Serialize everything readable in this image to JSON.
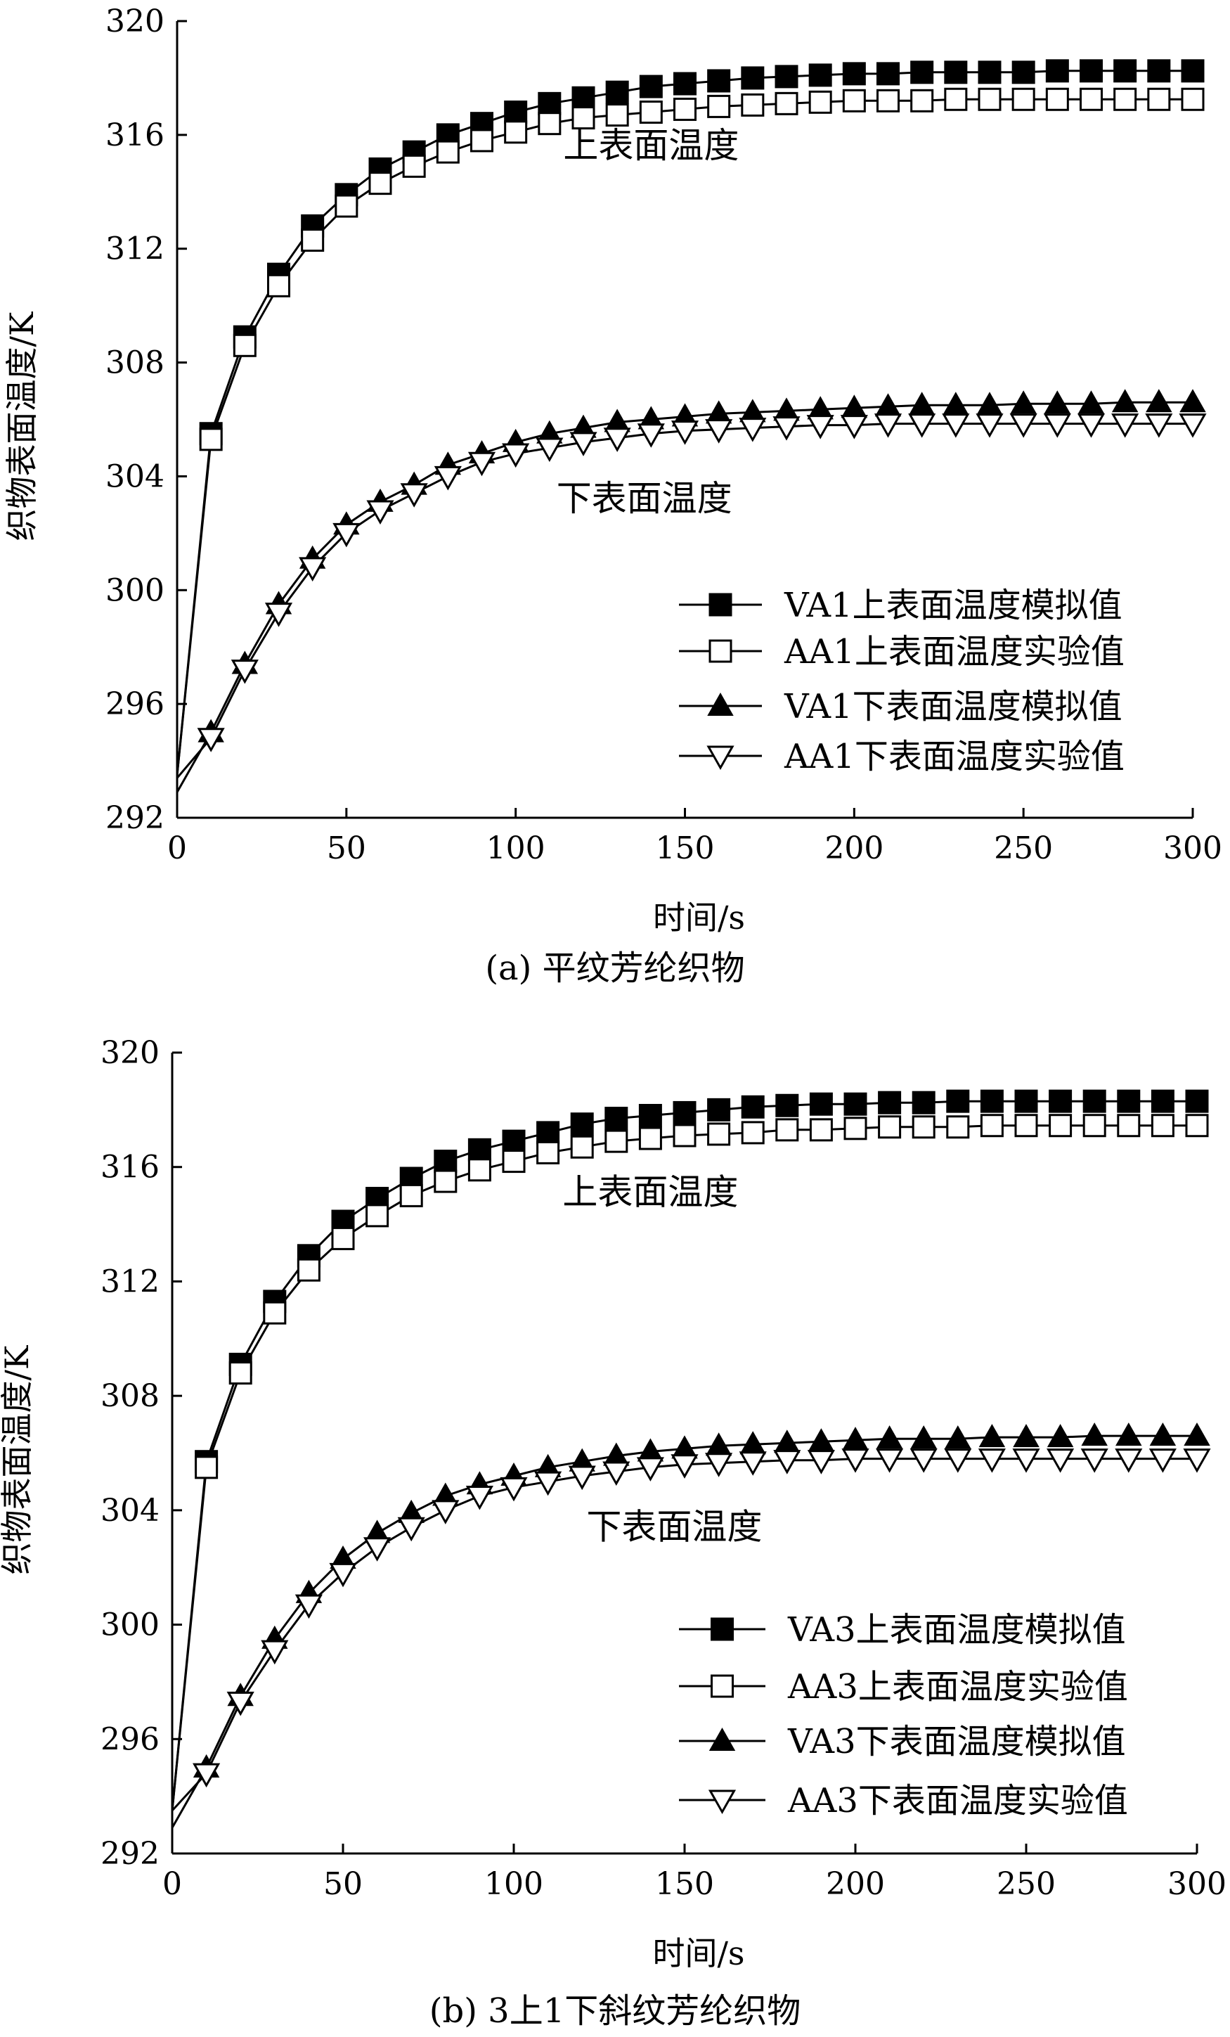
{
  "chart_data": [
    {
      "type": "line",
      "caption": "(a) 平纹芳纶织物",
      "xlabel": "时间/s",
      "ylabel": "织物表面温度/K",
      "xlim": [
        0,
        300
      ],
      "ylim": [
        292,
        320
      ],
      "xticks": [
        "0",
        "50",
        "100",
        "150",
        "200",
        "250",
        "300"
      ],
      "yticks": [
        "292",
        "296",
        "300",
        "304",
        "308",
        "312",
        "316",
        "320"
      ],
      "annotations": [
        {
          "text": "上表面温度",
          "x": 140,
          "y": 315.2
        },
        {
          "text": "下表面温度",
          "x": 138,
          "y": 302.8
        }
      ],
      "legend_position": "bottom-right",
      "series": [
        {
          "name": "VA1上表面温度模拟值",
          "marker": "square-filled",
          "x": [
            0,
            10,
            20,
            30,
            40,
            50,
            60,
            70,
            80,
            90,
            100,
            110,
            120,
            130,
            140,
            150,
            160,
            170,
            180,
            190,
            200,
            210,
            220,
            230,
            240,
            250,
            260,
            270,
            280,
            290,
            300
          ],
          "y": [
            293.5,
            305.5,
            308.9,
            311.1,
            312.8,
            313.9,
            314.8,
            315.4,
            316.0,
            316.4,
            316.8,
            317.1,
            317.3,
            317.5,
            317.7,
            317.8,
            317.9,
            318.0,
            318.05,
            318.1,
            318.15,
            318.15,
            318.2,
            318.2,
            318.2,
            318.2,
            318.25,
            318.25,
            318.25,
            318.25,
            318.25
          ]
        },
        {
          "name": "AA1上表面温度实验值",
          "marker": "square-open",
          "x": [
            0,
            10,
            20,
            30,
            40,
            50,
            60,
            70,
            80,
            90,
            100,
            110,
            120,
            130,
            140,
            150,
            160,
            170,
            180,
            190,
            200,
            210,
            220,
            230,
            240,
            250,
            260,
            270,
            280,
            290,
            300
          ],
          "y": [
            293.5,
            305.3,
            308.6,
            310.7,
            312.3,
            313.5,
            314.3,
            314.9,
            315.4,
            315.8,
            316.1,
            316.4,
            316.6,
            316.7,
            316.8,
            316.9,
            317.0,
            317.05,
            317.1,
            317.15,
            317.2,
            317.2,
            317.2,
            317.25,
            317.25,
            317.25,
            317.25,
            317.25,
            317.25,
            317.25,
            317.25
          ]
        },
        {
          "name": "VA1下表面温度模拟值",
          "marker": "triangle-up-filled",
          "x": [
            0,
            10,
            20,
            30,
            40,
            50,
            60,
            70,
            80,
            90,
            100,
            110,
            120,
            130,
            140,
            150,
            160,
            170,
            180,
            190,
            200,
            210,
            220,
            230,
            240,
            250,
            260,
            270,
            280,
            290,
            300
          ],
          "y": [
            292.9,
            295.0,
            297.4,
            299.5,
            301.1,
            302.3,
            303.1,
            303.7,
            304.4,
            304.8,
            305.2,
            305.5,
            305.7,
            305.9,
            306.0,
            306.1,
            306.2,
            306.25,
            306.3,
            306.35,
            306.4,
            306.45,
            306.5,
            306.5,
            306.5,
            306.55,
            306.55,
            306.55,
            306.6,
            306.6,
            306.6
          ]
        },
        {
          "name": "AA1下表面温度实验值",
          "marker": "triangle-down-open",
          "x": [
            0,
            10,
            20,
            30,
            40,
            50,
            60,
            70,
            80,
            90,
            100,
            110,
            120,
            130,
            140,
            150,
            160,
            170,
            180,
            190,
            200,
            210,
            220,
            230,
            240,
            250,
            260,
            270,
            280,
            290,
            300
          ],
          "y": [
            293.4,
            294.8,
            297.2,
            299.2,
            300.8,
            302.0,
            302.8,
            303.4,
            304.0,
            304.5,
            304.8,
            305.0,
            305.2,
            305.35,
            305.5,
            305.6,
            305.65,
            305.7,
            305.75,
            305.8,
            305.8,
            305.85,
            305.85,
            305.85,
            305.85,
            305.85,
            305.85,
            305.85,
            305.85,
            305.85,
            305.85
          ]
        }
      ]
    },
    {
      "type": "line",
      "caption": "(b) 3上1下斜纹芳纶织物",
      "xlabel": "时间/s",
      "ylabel": "织物表面温度/K",
      "xlim": [
        0,
        300
      ],
      "ylim": [
        292,
        320
      ],
      "xticks": [
        "0",
        "50",
        "100",
        "150",
        "200",
        "250",
        "300"
      ],
      "yticks": [
        "292",
        "296",
        "300",
        "304",
        "308",
        "312",
        "316",
        "320"
      ],
      "annotations": [
        {
          "text": "上表面温度",
          "x": 140,
          "y": 314.7
        },
        {
          "text": "下表面温度",
          "x": 147,
          "y": 303.0
        }
      ],
      "legend_position": "bottom-right",
      "series": [
        {
          "name": "VA3上表面温度模拟值",
          "marker": "square-filled",
          "x": [
            0,
            10,
            20,
            30,
            40,
            50,
            60,
            70,
            80,
            90,
            100,
            110,
            120,
            130,
            140,
            150,
            160,
            170,
            180,
            190,
            200,
            210,
            220,
            230,
            240,
            250,
            260,
            270,
            280,
            290,
            300
          ],
          "y": [
            293.5,
            305.7,
            309.1,
            311.3,
            312.9,
            314.1,
            314.9,
            315.6,
            316.2,
            316.6,
            316.9,
            317.2,
            317.5,
            317.7,
            317.8,
            317.9,
            318.0,
            318.1,
            318.15,
            318.2,
            318.2,
            318.25,
            318.25,
            318.3,
            318.3,
            318.3,
            318.3,
            318.3,
            318.3,
            318.3,
            318.3
          ]
        },
        {
          "name": "AA3上表面温度实验值",
          "marker": "square-open",
          "x": [
            0,
            10,
            20,
            30,
            40,
            50,
            60,
            70,
            80,
            90,
            100,
            110,
            120,
            130,
            140,
            150,
            160,
            170,
            180,
            190,
            200,
            210,
            220,
            230,
            240,
            250,
            260,
            270,
            280,
            290,
            300
          ],
          "y": [
            293.5,
            305.5,
            308.8,
            310.9,
            312.4,
            313.5,
            314.3,
            315.0,
            315.5,
            315.9,
            316.2,
            316.5,
            316.7,
            316.9,
            317.0,
            317.1,
            317.15,
            317.2,
            317.3,
            317.3,
            317.35,
            317.4,
            317.4,
            317.4,
            317.45,
            317.45,
            317.45,
            317.45,
            317.45,
            317.45,
            317.45
          ]
        },
        {
          "name": "VA3下表面温度模拟值",
          "marker": "triangle-up-filled",
          "x": [
            0,
            10,
            20,
            30,
            40,
            50,
            60,
            70,
            80,
            90,
            100,
            110,
            120,
            130,
            140,
            150,
            160,
            170,
            180,
            190,
            200,
            210,
            220,
            230,
            240,
            250,
            260,
            270,
            280,
            290,
            300
          ],
          "y": [
            292.9,
            295.0,
            297.5,
            299.5,
            301.1,
            302.3,
            303.2,
            303.9,
            304.5,
            304.9,
            305.2,
            305.5,
            305.7,
            305.9,
            306.05,
            306.15,
            306.25,
            306.3,
            306.35,
            306.4,
            306.45,
            306.5,
            306.5,
            306.5,
            306.55,
            306.55,
            306.55,
            306.6,
            306.6,
            306.6,
            306.6
          ]
        },
        {
          "name": "AA3下表面温度实验值",
          "marker": "triangle-down-open",
          "x": [
            0,
            10,
            20,
            30,
            40,
            50,
            60,
            70,
            80,
            90,
            100,
            110,
            120,
            130,
            140,
            150,
            160,
            170,
            180,
            190,
            200,
            210,
            220,
            230,
            240,
            250,
            260,
            270,
            280,
            290,
            300
          ],
          "y": [
            293.5,
            294.8,
            297.3,
            299.1,
            300.7,
            301.8,
            302.7,
            303.4,
            304.0,
            304.5,
            304.8,
            305.0,
            305.2,
            305.35,
            305.5,
            305.6,
            305.65,
            305.7,
            305.75,
            305.75,
            305.8,
            305.8,
            305.8,
            305.8,
            305.8,
            305.8,
            305.8,
            305.8,
            305.8,
            305.8,
            305.8
          ]
        }
      ]
    }
  ]
}
